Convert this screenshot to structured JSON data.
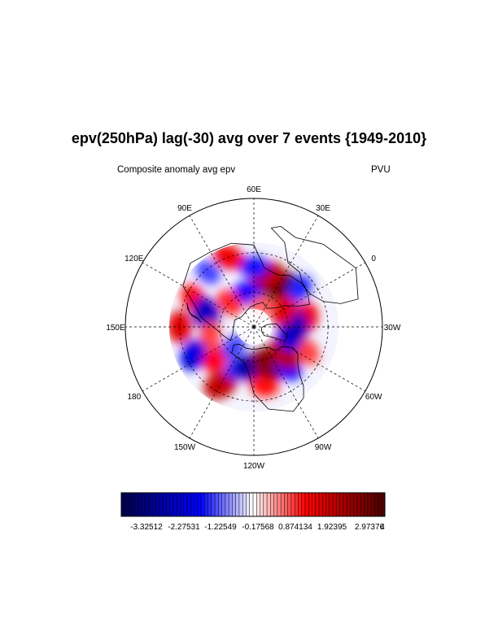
{
  "title": "epv(250hPa) lag(-30) avg over 7 events {1949-2010}",
  "left_string": "Composite anomaly avg epv",
  "right_string": "PVU",
  "map": {
    "projection": "polar-stereographic-north",
    "longitude_labels": [
      {
        "lon": 60,
        "text": "60E"
      },
      {
        "lon": 30,
        "text": "30E"
      },
      {
        "lon": 0,
        "text": "0"
      },
      {
        "lon": -30,
        "text": "30W"
      },
      {
        "lon": -60,
        "text": "60W"
      },
      {
        "lon": -90,
        "text": "90W"
      },
      {
        "lon": -120,
        "text": "120W"
      },
      {
        "lon": -150,
        "text": "150W"
      },
      {
        "lon": 180,
        "text": "180"
      },
      {
        "lon": 150,
        "text": "150E"
      },
      {
        "lon": 120,
        "text": "120E"
      },
      {
        "lon": 90,
        "text": "90E"
      }
    ],
    "anomalies": [
      {
        "lon": 25,
        "lat": 52,
        "value": 4
      },
      {
        "lon": 45,
        "lat": 45,
        "value": 2.5
      },
      {
        "lon": 60,
        "lat": 40,
        "value": -1.5
      },
      {
        "lon": 80,
        "lat": 30,
        "value": 1.8
      },
      {
        "lon": 100,
        "lat": 32,
        "value": -1.2
      },
      {
        "lon": 125,
        "lat": 35,
        "value": 1.6
      },
      {
        "lon": 135,
        "lat": 48,
        "value": -2.4
      },
      {
        "lon": 150,
        "lat": 30,
        "value": 2.0
      },
      {
        "lon": 160,
        "lat": 52,
        "value": 1.2
      },
      {
        "lon": 175,
        "lat": 35,
        "value": -2.0
      },
      {
        "lon": -170,
        "lat": 48,
        "value": 1.6
      },
      {
        "lon": -150,
        "lat": 35,
        "value": 2.4
      },
      {
        "lon": -140,
        "lat": 52,
        "value": -1.4
      },
      {
        "lon": -120,
        "lat": 55,
        "value": -2.8
      },
      {
        "lon": -110,
        "lat": 40,
        "value": 1.5
      },
      {
        "lon": -95,
        "lat": 55,
        "value": 3.2
      },
      {
        "lon": -80,
        "lat": 45,
        "value": -1.6
      },
      {
        "lon": -70,
        "lat": 55,
        "value": 2.6
      },
      {
        "lon": -55,
        "lat": 40,
        "value": 1.2
      },
      {
        "lon": -45,
        "lat": 58,
        "value": -1.8
      },
      {
        "lon": -20,
        "lat": 45,
        "value": 1.8
      },
      {
        "lon": -30,
        "lat": 55,
        "value": -2.5
      },
      {
        "lon": 0,
        "lat": 60,
        "value": 2.0
      },
      {
        "lon": 10,
        "lat": 40,
        "value": -1.4
      },
      {
        "lon": 70,
        "lat": 60,
        "value": -1.6
      },
      {
        "lon": 105,
        "lat": 60,
        "value": 1.4
      },
      {
        "lon": -165,
        "lat": 65,
        "value": -1.2
      },
      {
        "lon": 40,
        "lat": 70,
        "value": 1.0
      }
    ]
  },
  "colorbar": {
    "min": -4,
    "max": 4,
    "n_boxes": 76,
    "labels": [
      "-3.32512",
      "-2.27531",
      "-1.22549",
      "-0.17568",
      "0.874134",
      "1.92395",
      "2.97376",
      "4"
    ],
    "low_color": "#00004a",
    "mid_color": "#ffffff",
    "high_color": "#4a0000",
    "blue_color": "#0000ff",
    "red_color": "#ff0000"
  }
}
